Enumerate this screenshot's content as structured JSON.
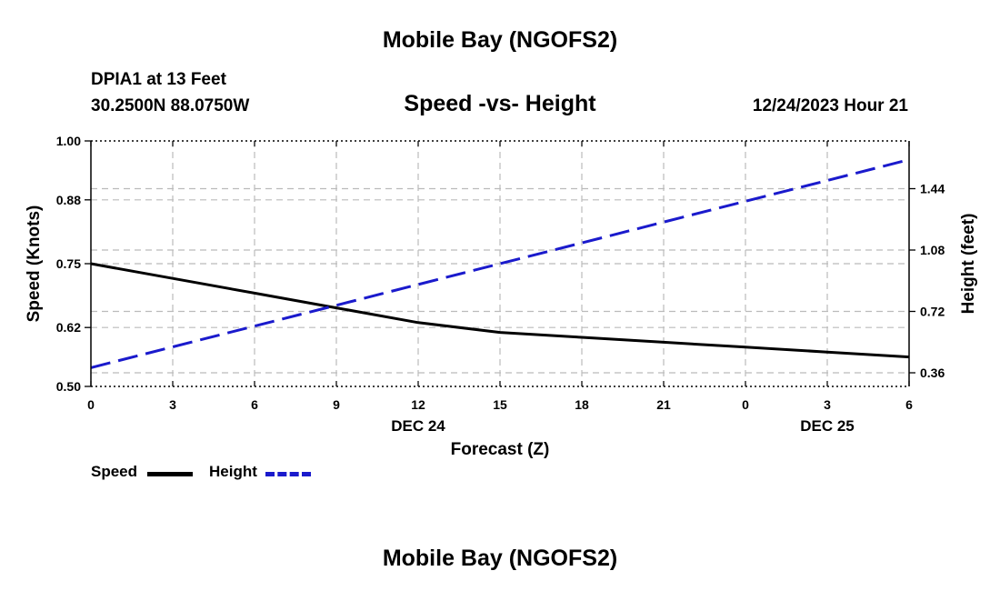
{
  "header": {
    "title": "Mobile Bay (NGOFS2)",
    "station": "DPIA1 at 13 Feet",
    "coords": "30.2500N  88.0750W",
    "subtitle": "Speed -vs- Height",
    "timestamp": "12/24/2023 Hour 21"
  },
  "footer": {
    "title": "Mobile Bay (NGOFS2)"
  },
  "legend": {
    "speed_label": "Speed",
    "height_label": "Height"
  },
  "colors": {
    "speed": "#000000",
    "height": "#1a1acc",
    "grid": "#bbbbbb"
  },
  "chart_data": {
    "type": "line",
    "xlabel": "Forecast (Z)",
    "ylabel_left": "Speed (Knots)",
    "ylabel_right": "Height (feet)",
    "x": [
      0,
      3,
      6,
      9,
      12,
      15,
      18,
      21,
      24,
      27,
      30
    ],
    "x_tick_labels": [
      "0",
      "3",
      "6",
      "9",
      "12",
      "15",
      "18",
      "21",
      "0",
      "3",
      "6"
    ],
    "xlim": [
      0,
      30
    ],
    "date_labels": [
      {
        "x": 12,
        "label": "DEC 24"
      },
      {
        "x": 27,
        "label": "DEC 25"
      }
    ],
    "ylim_left": [
      0.5,
      1.0
    ],
    "y_ticks_left": [
      0.5,
      0.62,
      0.75,
      0.88,
      1.0
    ],
    "y_tick_labels_left": [
      "0.50",
      "0.62",
      "0.75",
      "0.88",
      "1.00"
    ],
    "ylim_right": [
      0.28,
      1.72
    ],
    "y_ticks_right": [
      0.36,
      0.72,
      1.08,
      1.44
    ],
    "y_tick_labels_right": [
      "0.36",
      "0.72",
      "1.08",
      "1.44"
    ],
    "grid": true,
    "series": [
      {
        "name": "Speed",
        "axis": "left",
        "style": "solid",
        "x": [
          0,
          3,
          6,
          9,
          12,
          15,
          18,
          21,
          24,
          27,
          30
        ],
        "values": [
          0.75,
          0.72,
          0.69,
          0.66,
          0.63,
          0.61,
          0.6,
          0.59,
          0.58,
          0.57,
          0.56
        ]
      },
      {
        "name": "Height",
        "axis": "right",
        "style": "dashed",
        "x": [
          0,
          30
        ],
        "values": [
          0.39,
          1.61
        ]
      }
    ]
  }
}
